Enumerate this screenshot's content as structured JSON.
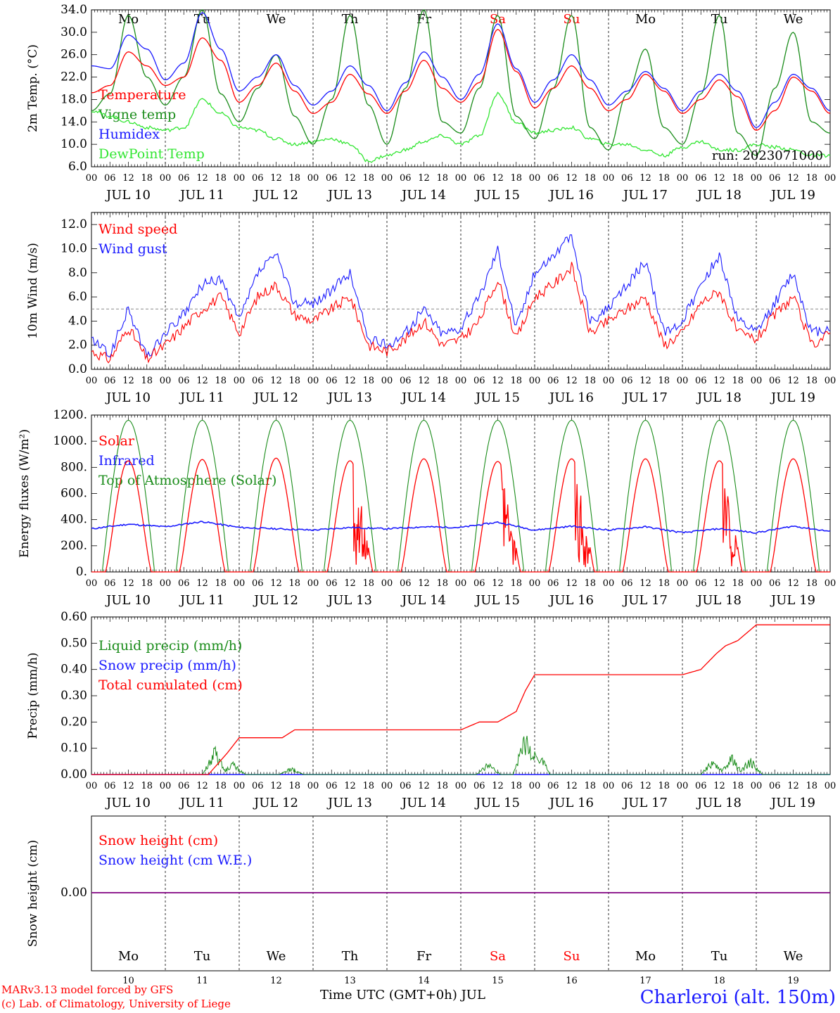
{
  "days": [
    {
      "date": "JUL 10",
      "dow": "Mo",
      "num": "10",
      "weekend": false
    },
    {
      "date": "JUL 11",
      "dow": "Tu",
      "num": "11",
      "weekend": false
    },
    {
      "date": "JUL 12",
      "dow": "We",
      "num": "12",
      "weekend": false
    },
    {
      "date": "JUL 13",
      "dow": "Th",
      "num": "13",
      "weekend": false
    },
    {
      "date": "JUL 14",
      "dow": "Fr",
      "num": "14",
      "weekend": false
    },
    {
      "date": "JUL 15",
      "dow": "Sa",
      "num": "15",
      "weekend": true
    },
    {
      "date": "JUL 16",
      "dow": "Su",
      "num": "16",
      "weekend": true
    },
    {
      "date": "JUL 17",
      "dow": "Mo",
      "num": "17",
      "weekend": false
    },
    {
      "date": "JUL 18",
      "dow": "Tu",
      "num": "18",
      "weekend": false
    },
    {
      "date": "JUL 19",
      "dow": "We",
      "num": "19",
      "weekend": false
    }
  ],
  "hour_ticks": [
    "00",
    "06",
    "12",
    "18"
  ],
  "colors": {
    "red": "#ff0000",
    "green": "#1a8c1a",
    "blue": "#1a1aff",
    "lightgreen": "#33e633",
    "purple": "#800080",
    "weekend": "#ff0000"
  },
  "footer": {
    "model": "MARv3.13 model forced by GFS",
    "lab": "(c) Lab. of Climatology, University of Liege",
    "axis_title": "Time UTC (GMT+0h) JUL",
    "station": "Charleroi (alt. 150m)"
  },
  "chart_data": [
    {
      "type": "line",
      "ylabel": "2m Temp. (°C)",
      "ylim": [
        6,
        34
      ],
      "yticks": [
        "6.0",
        "10.0",
        "14.0",
        "18.0",
        "22.0",
        "26.0",
        "30.0",
        "34.0"
      ],
      "annotation": "run: 2023071000",
      "show_day_names": true,
      "x_hours": [
        0,
        6,
        12,
        18,
        24,
        30,
        36,
        42,
        48,
        54,
        60,
        66,
        72,
        78,
        84,
        90,
        96,
        102,
        108,
        114,
        120,
        126,
        132,
        138,
        144,
        150,
        156,
        162,
        168,
        174,
        180,
        186,
        192,
        198,
        204,
        210,
        216,
        222,
        228,
        234,
        240
      ],
      "series": [
        {
          "name": "Temperature",
          "color": "red",
          "values": [
            19.2,
            20.5,
            26.5,
            24,
            20.5,
            22,
            29,
            25,
            17.5,
            20.5,
            24.5,
            19.5,
            15.5,
            17.5,
            22.5,
            19,
            15.5,
            19.5,
            25,
            20,
            17.5,
            21,
            30.5,
            23,
            16.5,
            20,
            24,
            20,
            16,
            18,
            22.5,
            19.5,
            15.5,
            18,
            21.5,
            18.5,
            12.5,
            16,
            22,
            19.5,
            15.5
          ]
        },
        {
          "name": "Vigne temp",
          "color": "green",
          "values": [
            16,
            19,
            33,
            22,
            17,
            22,
            34,
            19,
            14,
            20,
            26,
            15,
            10,
            18,
            33,
            17,
            10,
            20,
            34,
            14,
            12,
            20,
            33,
            15,
            11,
            20,
            33,
            13,
            9,
            19,
            27,
            13,
            10,
            19,
            33,
            12,
            8,
            20,
            30,
            14,
            12
          ]
        },
        {
          "name": "Humidex",
          "color": "blue",
          "values": [
            24,
            23.5,
            29.5,
            27,
            21.5,
            24.5,
            33.5,
            27,
            19.5,
            22,
            26,
            20.5,
            17,
            19.5,
            24,
            20.5,
            16,
            21,
            26.5,
            22,
            18,
            22.5,
            31.5,
            23.5,
            17.5,
            21.5,
            26,
            21.5,
            17,
            19.5,
            23,
            20,
            16,
            19.5,
            22.5,
            19.5,
            13,
            17.5,
            22.5,
            20,
            16
          ]
        },
        {
          "name": "DewPoint Temp",
          "color": "lightgreen",
          "values": [
            16,
            15,
            14,
            13,
            12.5,
            13,
            18,
            15.5,
            13,
            12.5,
            11,
            10,
            10.5,
            11,
            10,
            7,
            8,
            9,
            10.5,
            11.5,
            10,
            11.5,
            19,
            14,
            12,
            12.5,
            13,
            11,
            10,
            10,
            9,
            8,
            9.5,
            10.5,
            9,
            9,
            10,
            9.5,
            9,
            8,
            8
          ]
        }
      ]
    },
    {
      "type": "line",
      "ylabel": "10m Wind (m/s)",
      "ylim": [
        0,
        13
      ],
      "yticks": [
        "0.0",
        "2.0",
        "4.0",
        "6.0",
        "8.0",
        "10.0",
        "12.0"
      ],
      "hline": 5.0,
      "show_day_names": false,
      "x_hours": [
        0,
        6,
        12,
        18,
        24,
        30,
        36,
        42,
        48,
        54,
        60,
        66,
        72,
        78,
        84,
        90,
        96,
        102,
        108,
        114,
        120,
        126,
        132,
        138,
        144,
        150,
        156,
        162,
        168,
        174,
        180,
        186,
        192,
        198,
        204,
        210,
        216,
        222,
        228,
        234,
        240
      ],
      "series": [
        {
          "name": "Wind speed",
          "color": "red",
          "values": [
            1.5,
            0.8,
            3.5,
            0.8,
            2,
            3.5,
            5,
            6,
            3,
            6,
            7,
            4.5,
            4,
            5,
            6,
            2,
            1.5,
            2.5,
            4,
            2,
            2.5,
            4,
            7.5,
            2.5,
            6,
            7,
            8.5,
            3,
            4,
            5,
            6,
            2,
            3,
            5.5,
            6.5,
            3,
            2.5,
            4.5,
            6,
            2,
            3
          ]
        },
        {
          "name": "Wind gust",
          "color": "blue",
          "values": [
            2.5,
            1.2,
            5,
            1,
            3,
            4.5,
            7,
            7.5,
            4,
            8,
            9.5,
            5.5,
            5.5,
            6.5,
            8,
            2.5,
            2,
            3,
            5,
            3,
            3.5,
            6,
            10,
            3.5,
            8,
            9.5,
            11,
            4,
            5,
            7,
            9,
            3,
            4,
            7,
            9.5,
            4,
            3,
            5.5,
            8,
            3,
            3.5
          ]
        }
      ]
    },
    {
      "type": "line",
      "ylabel": "Energy fluxes (W/m²)",
      "ylim": [
        0,
        1200
      ],
      "yticks": [
        "0.",
        "200.",
        "400.",
        "600.",
        "800.",
        "1000.",
        "1200."
      ],
      "show_day_names": false,
      "series": [
        {
          "name": "Solar",
          "color": "red",
          "peaks": [
            850,
            860,
            870,
            850,
            865,
            845,
            865,
            865,
            850,
            865
          ]
        },
        {
          "name": "Infrared",
          "color": "blue",
          "x_hours": [
            0,
            12,
            24,
            36,
            48,
            60,
            72,
            84,
            96,
            108,
            120,
            132,
            144,
            156,
            168,
            180,
            192,
            204,
            216,
            228,
            240
          ],
          "values": [
            330,
            365,
            345,
            385,
            340,
            330,
            320,
            340,
            330,
            345,
            340,
            380,
            320,
            350,
            320,
            345,
            300,
            330,
            300,
            350,
            310
          ]
        },
        {
          "name": "Top of Atmosphere (Solar)",
          "color": "green",
          "peak": 1160
        }
      ]
    },
    {
      "type": "line",
      "ylabel": "Precip (mm/h)",
      "ylim": [
        0,
        0.6
      ],
      "yticks": [
        "0.00",
        "0.10",
        "0.20",
        "0.30",
        "0.40",
        "0.50",
        "0.60"
      ],
      "show_day_names": false,
      "series": [
        {
          "name": "Liquid precip (mm/h)",
          "color": "green",
          "events": [
            [
              40,
              0.12
            ],
            [
              46,
              0.05
            ],
            [
              65,
              0.03
            ],
            [
              129,
              0.05
            ],
            [
              141,
              0.18
            ],
            [
              145,
              0.12
            ],
            [
              202,
              0.07
            ],
            [
              208,
              0.08
            ],
            [
              214,
              0.07
            ]
          ]
        },
        {
          "name": "Snow precip (mm/h)",
          "color": "blue",
          "values": [
            0
          ]
        },
        {
          "name": "Total cumulated (cm)",
          "color": "red",
          "x_hours": [
            0,
            38,
            44,
            48,
            62,
            66,
            96,
            120,
            126,
            132,
            138,
            141,
            144,
            150,
            168,
            192,
            198,
            203,
            206,
            210,
            216,
            240
          ],
          "values": [
            0,
            0,
            0.08,
            0.14,
            0.14,
            0.17,
            0.17,
            0.17,
            0.2,
            0.2,
            0.24,
            0.32,
            0.38,
            0.38,
            0.38,
            0.38,
            0.4,
            0.46,
            0.49,
            0.51,
            0.57,
            0.57
          ]
        }
      ]
    },
    {
      "type": "line",
      "ylabel": "Snow height (cm)",
      "yticks": [
        "0.00"
      ],
      "show_day_names": true,
      "series": [
        {
          "name": "Snow height (cm)",
          "color": "red",
          "values": [
            0
          ]
        },
        {
          "name": "Snow height (cm W.E.)",
          "color": "blue",
          "values": [
            0
          ]
        }
      ]
    }
  ]
}
